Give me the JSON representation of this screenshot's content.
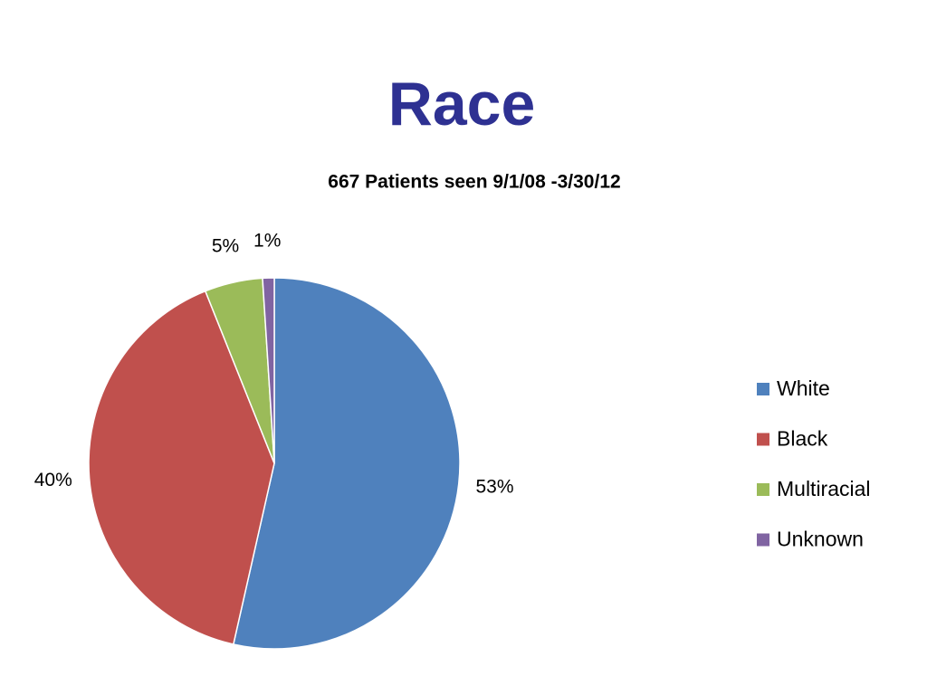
{
  "chart_data": {
    "type": "pie",
    "title": "Race",
    "subtitle": "667 Patients seen  9/1/08 -3/30/12",
    "categories": [
      "White",
      "Black",
      "Multiracial",
      "Unknown"
    ],
    "values": [
      53,
      40,
      5,
      1
    ],
    "value_labels": [
      "53%",
      "40%",
      "5%",
      "1%"
    ],
    "colors": [
      "#4f81bd",
      "#c0504d",
      "#9bbb59",
      "#8064a2"
    ],
    "legend": "right"
  }
}
